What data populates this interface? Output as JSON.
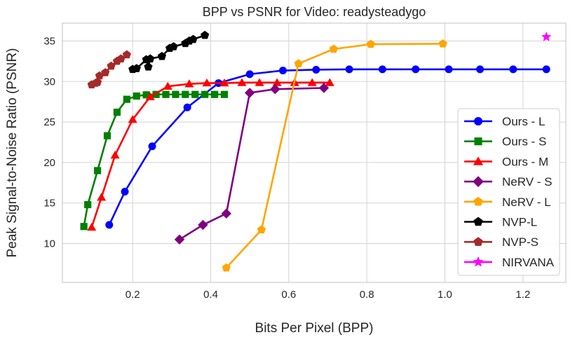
{
  "chart_data": {
    "type": "line",
    "title": "BPP vs PSNR for Video: readysteadygo",
    "xlabel": "Bits Per Pixel (BPP)",
    "ylabel": "Peak Signal-to-Noise Ratio (PSNR)",
    "xlim": [
      0.02,
      1.31
    ],
    "ylim": [
      5.2,
      37.2
    ],
    "xticks": [
      0.2,
      0.4,
      0.6,
      0.8,
      1.0,
      1.2
    ],
    "xtick_labels": [
      "0.2",
      "0.4",
      "0.6",
      "0.8",
      "1.0",
      "1.2"
    ],
    "yticks": [
      10,
      15,
      20,
      25,
      30,
      35
    ],
    "ytick_labels": [
      "10",
      "15",
      "20",
      "25",
      "30",
      "35"
    ],
    "grid": true,
    "legend_position": "right",
    "series": [
      {
        "name": "Ours - L",
        "color": "#0000ff",
        "marker": "circle",
        "x": [
          0.14,
          0.18,
          0.25,
          0.34,
          0.42,
          0.5,
          0.585,
          0.67,
          0.755,
          0.84,
          0.925,
          1.01,
          1.09,
          1.175,
          1.26
        ],
        "y": [
          12.3,
          16.4,
          22.0,
          26.8,
          29.8,
          30.9,
          31.35,
          31.45,
          31.5,
          31.5,
          31.5,
          31.5,
          31.5,
          31.5,
          31.5
        ]
      },
      {
        "name": "Ours - S",
        "color": "#008000",
        "marker": "square",
        "x": [
          0.075,
          0.085,
          0.11,
          0.135,
          0.16,
          0.185,
          0.21,
          0.235,
          0.26,
          0.285,
          0.31,
          0.335,
          0.36,
          0.385,
          0.41,
          0.435
        ],
        "y": [
          12.1,
          14.8,
          19.0,
          23.3,
          26.2,
          27.8,
          28.2,
          28.35,
          28.4,
          28.4,
          28.4,
          28.4,
          28.4,
          28.4,
          28.4,
          28.4
        ]
      },
      {
        "name": "Ours - M",
        "color": "#ff0000",
        "marker": "triangle",
        "x": [
          0.095,
          0.12,
          0.155,
          0.2,
          0.245,
          0.29,
          0.345,
          0.39,
          0.435,
          0.48,
          0.525,
          0.57,
          0.615,
          0.66,
          0.705
        ],
        "y": [
          12.0,
          15.7,
          20.9,
          25.3,
          28.1,
          29.4,
          29.7,
          29.8,
          29.8,
          29.85,
          29.85,
          29.85,
          29.85,
          29.85,
          29.85
        ]
      },
      {
        "name": "NeRV - S",
        "color": "#800080",
        "marker": "diamond",
        "x": [
          0.32,
          0.38,
          0.44,
          0.5,
          0.565,
          0.69
        ],
        "y": [
          10.5,
          12.3,
          13.7,
          28.6,
          29.05,
          29.2
        ]
      },
      {
        "name": "NeRV - L",
        "color": "#ffa500",
        "marker": "pentagon",
        "x": [
          0.44,
          0.53,
          0.625,
          0.715,
          0.81,
          0.995
        ],
        "y": [
          7.0,
          11.7,
          32.2,
          34.0,
          34.6,
          34.65
        ]
      },
      {
        "name": "NVP-L",
        "color": "#000000",
        "marker": "pentagon",
        "x": [
          0.2,
          0.21,
          0.235,
          0.24,
          0.245,
          0.275,
          0.295,
          0.305,
          0.335,
          0.345,
          0.355,
          0.385
        ],
        "y": [
          31.5,
          31.6,
          32.7,
          31.8,
          32.8,
          33.1,
          34.1,
          34.3,
          34.7,
          35.0,
          35.2,
          35.7
        ]
      },
      {
        "name": "NVP-S",
        "color": "#a52a2a",
        "marker": "pentagon",
        "x": [
          0.095,
          0.105,
          0.11,
          0.115,
          0.13,
          0.145,
          0.16,
          0.17,
          0.185
        ],
        "y": [
          29.6,
          29.8,
          29.9,
          30.7,
          31.1,
          31.9,
          32.5,
          32.8,
          33.3
        ]
      },
      {
        "name": "NIRVANA",
        "color": "#ff00ff",
        "marker": "star",
        "x": [
          1.26
        ],
        "y": [
          35.5
        ]
      }
    ]
  }
}
